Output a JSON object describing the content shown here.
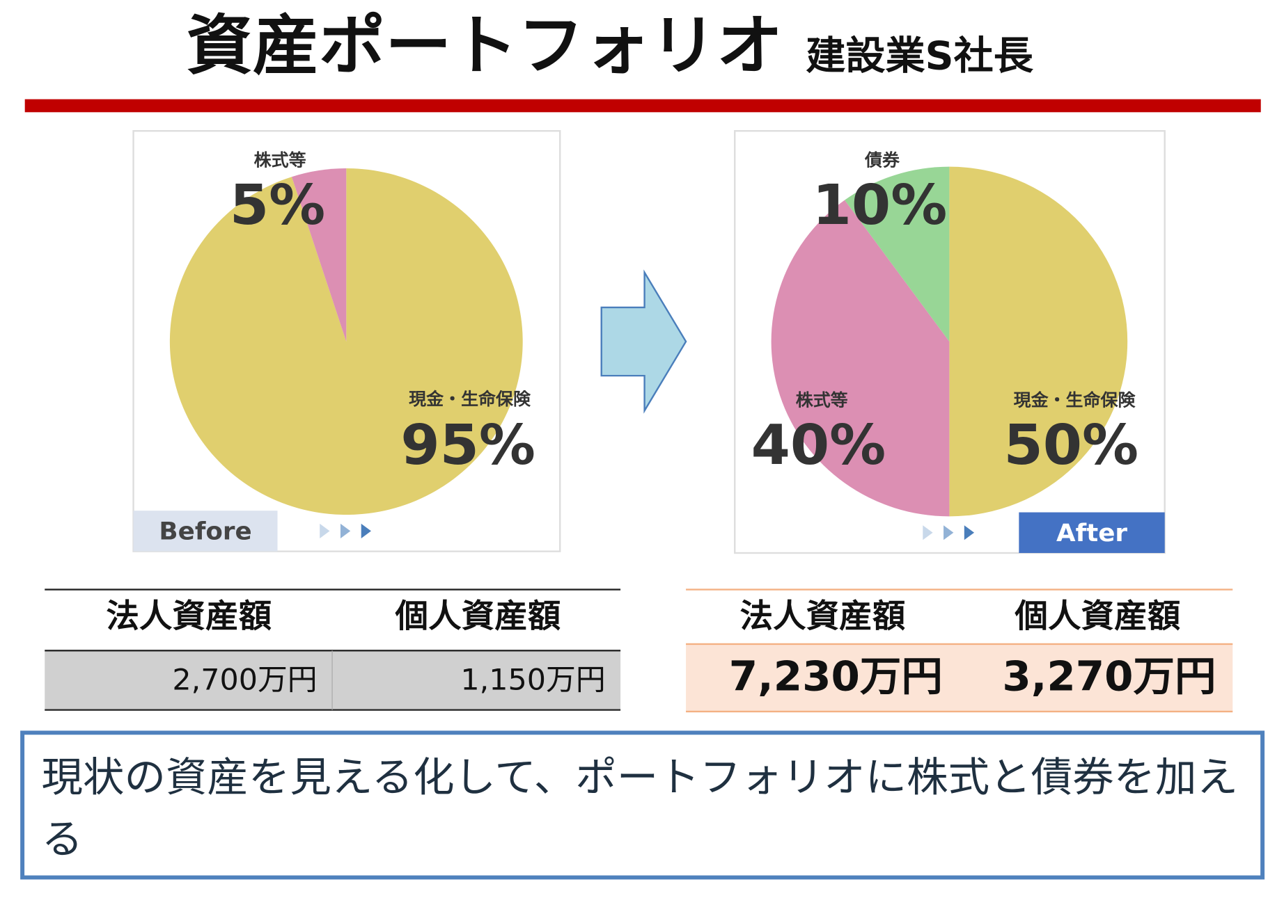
{
  "title": "資産ポートフォリオ",
  "subtitle": "建設業S社長",
  "chart_data": [
    {
      "type": "pie",
      "label": "Before",
      "categories": [
        "現金・生命保険",
        "株式等"
      ],
      "values": [
        95,
        5
      ],
      "value_labels": [
        "95%",
        "5%"
      ],
      "colors": [
        "#e0cf6e",
        "#dc8fb3"
      ]
    },
    {
      "type": "pie",
      "label": "After",
      "categories": [
        "現金・生命保険",
        "株式等",
        "債券"
      ],
      "values": [
        50,
        40,
        10
      ],
      "value_labels": [
        "50%",
        "40%",
        "10%"
      ],
      "colors": [
        "#e0cf6e",
        "#dc8fb3",
        "#98d696"
      ]
    }
  ],
  "tables": [
    {
      "header": [
        "法人資産額",
        "個人資産額"
      ],
      "row": [
        "2,700万円",
        "1,150万円"
      ]
    },
    {
      "header": [
        "法人資産額",
        "個人資産額"
      ],
      "row": [
        "7,230万円",
        "3,270万円"
      ]
    }
  ],
  "message": "現状の資産を見える化して、ポートフォリオに株式と債券を加える"
}
